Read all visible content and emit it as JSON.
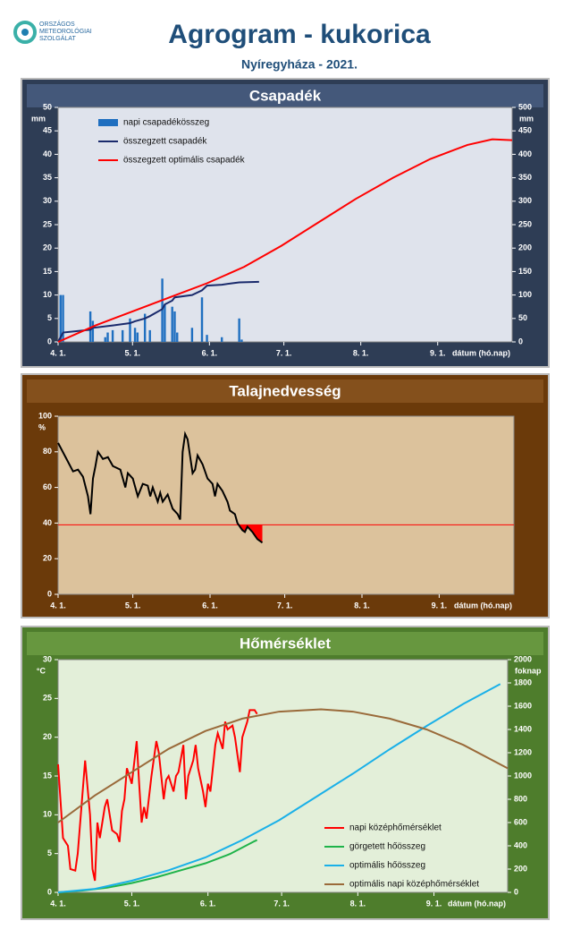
{
  "header": {
    "logo_lines": [
      "ORSZÁGOS",
      "METEOROLÓGIAI",
      "SZOLGÁLAT"
    ],
    "title": "Agrogram - kukorica",
    "subtitle": "Nyíregyháza - 2021."
  },
  "chart_data": [
    {
      "type": "combo",
      "title": "Csapadék",
      "y_unit": "mm",
      "y2_unit": "mm",
      "x_label": "dátum (hó.nap)",
      "legend": "upper left",
      "xlim": [
        0,
        183
      ],
      "xticks": [
        {
          "value": 0,
          "label": "4. 1."
        },
        {
          "value": 30,
          "label": "5. 1."
        },
        {
          "value": 61,
          "label": "6. 1."
        },
        {
          "value": 91,
          "label": "7. 1."
        },
        {
          "value": 122,
          "label": "8. 1."
        },
        {
          "value": 153,
          "label": "9. 1."
        }
      ],
      "ylim": [
        0,
        50
      ],
      "yticks": [
        0,
        5,
        10,
        15,
        20,
        25,
        30,
        35,
        40,
        45,
        50
      ],
      "y2lim": [
        0,
        500
      ],
      "y2ticks": [
        0,
        50,
        100,
        150,
        200,
        250,
        300,
        350,
        400,
        450,
        500
      ],
      "series": [
        {
          "name": "napi csapadékösszeg",
          "kind": "bar",
          "color": "#1f6fc0",
          "x": [
            1,
            2,
            13,
            14,
            19,
            20,
            22,
            26,
            29,
            31,
            32,
            35,
            37,
            42,
            43,
            46,
            47,
            48,
            54,
            58,
            60,
            66,
            73,
            74
          ],
          "values": [
            10,
            10,
            6.5,
            4.5,
            1,
            2,
            2.5,
            2.5,
            5,
            3,
            2,
            6,
            2.5,
            13.5,
            8,
            7.5,
            6.5,
            2,
            3,
            9.5,
            1.5,
            1,
            5,
            0.5
          ]
        },
        {
          "name": "összegzett csapadék",
          "kind": "line",
          "color": "#1a2a6c",
          "axis": "y2",
          "x": [
            0,
            1,
            2,
            13,
            14,
            22,
            29,
            31,
            35,
            37,
            42,
            43,
            46,
            47,
            54,
            58,
            60,
            66,
            73,
            81
          ],
          "values": [
            0,
            10,
            20,
            26,
            30,
            35,
            40,
            44,
            50,
            55,
            70,
            80,
            88,
            95,
            100,
            110,
            120,
            122,
            127,
            128
          ]
        },
        {
          "name": "összegzett optimális  csapadék",
          "kind": "line",
          "color": "#ff0000",
          "axis": "y2",
          "x": [
            0,
            15,
            30,
            45,
            60,
            75,
            90,
            105,
            120,
            135,
            150,
            165,
            175,
            183
          ],
          "values": [
            0,
            35,
            65,
            95,
            125,
            160,
            205,
            255,
            305,
            350,
            390,
            420,
            432,
            430
          ]
        }
      ]
    },
    {
      "type": "line",
      "title": "Talajnedvesség",
      "y_unit": "%",
      "x_label": "dátum (hó.nap)",
      "xlim": [
        0,
        183
      ],
      "xticks": [
        {
          "value": 0,
          "label": "4. 1."
        },
        {
          "value": 30,
          "label": "5. 1."
        },
        {
          "value": 61,
          "label": "6. 1."
        },
        {
          "value": 91,
          "label": "7. 1."
        },
        {
          "value": 122,
          "label": "8. 1."
        },
        {
          "value": 153,
          "label": "9. 1."
        }
      ],
      "ylim": [
        0,
        100
      ],
      "yticks": [
        0,
        20,
        40,
        60,
        80,
        100
      ],
      "reference_line": 39,
      "reference_color": "#ff0000",
      "series": [
        {
          "color": "#000000",
          "x": [
            0,
            3,
            6,
            8,
            10,
            12,
            13,
            14,
            15,
            16,
            18,
            20,
            22,
            25,
            27,
            28,
            30,
            32,
            34,
            36,
            37,
            38,
            40,
            41,
            42,
            44,
            46,
            48,
            49,
            50,
            51,
            52,
            54,
            55,
            56,
            58,
            60,
            62,
            63,
            64,
            66,
            68,
            69,
            71,
            72,
            74,
            75,
            76,
            78,
            80,
            82
          ],
          "values": [
            85,
            77,
            69,
            70,
            66,
            55,
            45,
            65,
            72,
            80,
            76,
            77,
            72,
            70,
            60,
            68,
            65,
            55,
            62,
            61,
            55,
            60,
            52,
            57,
            52,
            56,
            48,
            45,
            42,
            80,
            90,
            87,
            68,
            70,
            78,
            73,
            65,
            62,
            55,
            62,
            58,
            52,
            47,
            45,
            40,
            36,
            35,
            38,
            35,
            31,
            29
          ]
        }
      ]
    },
    {
      "type": "line",
      "title": "Hőmérséklet",
      "y_unit": "°C",
      "y2_unit": "foknap",
      "x_label": "dátum (hó.nap)",
      "legend": "lower right",
      "xlim": [
        0,
        183
      ],
      "xticks": [
        {
          "value": 0,
          "label": "4. 1."
        },
        {
          "value": 30,
          "label": "5. 1."
        },
        {
          "value": 61,
          "label": "6. 1."
        },
        {
          "value": 91,
          "label": "7. 1."
        },
        {
          "value": 122,
          "label": "8. 1."
        },
        {
          "value": 153,
          "label": "9. 1."
        }
      ],
      "ylim": [
        0,
        30
      ],
      "yticks": [
        0,
        5,
        10,
        15,
        20,
        25,
        30
      ],
      "y2lim": [
        0,
        2000
      ],
      "y2ticks": [
        0,
        200,
        400,
        600,
        800,
        1000,
        1200,
        1400,
        1600,
        1800,
        2000
      ],
      "series": [
        {
          "name": "napi középhőmérséklet",
          "color": "#ff0000",
          "x": [
            0,
            2,
            4,
            5,
            7,
            8,
            11,
            13,
            14,
            15,
            16,
            17,
            19,
            20,
            22,
            24,
            25,
            26,
            27,
            28,
            30,
            32,
            33,
            34,
            35,
            36,
            38,
            40,
            41,
            43,
            44,
            45,
            47,
            48,
            49,
            51,
            52,
            53,
            55,
            56,
            57,
            59,
            60,
            61,
            62,
            64,
            65,
            67,
            68,
            69,
            71,
            72,
            74,
            75,
            77,
            78,
            80,
            81
          ],
          "values": [
            16.5,
            7,
            6,
            3,
            2.8,
            5,
            17,
            10,
            3,
            1.5,
            9,
            7,
            11,
            12,
            8,
            7.5,
            6.5,
            10.5,
            12,
            16,
            14,
            19.5,
            14,
            9,
            11,
            9.5,
            15,
            19.5,
            18,
            12,
            14.5,
            15,
            13,
            15,
            15.5,
            19,
            12,
            15,
            17,
            19,
            16,
            13,
            11,
            14,
            13,
            19,
            20.5,
            18.5,
            22,
            21,
            21.5,
            20,
            15.5,
            20,
            22,
            23.5,
            23.5,
            23
          ]
        },
        {
          "name": "görgetett hőösszeg",
          "color": "#1fb34a",
          "axis": "y2",
          "x": [
            0,
            10,
            20,
            30,
            40,
            50,
            60,
            70,
            80,
            81
          ],
          "values": [
            0,
            15,
            40,
            80,
            130,
            190,
            250,
            330,
            440,
            450
          ]
        },
        {
          "name": "optimális hőösszeg",
          "color": "#1ab0e8",
          "axis": "y2",
          "x": [
            0,
            15,
            30,
            45,
            60,
            75,
            90,
            105,
            120,
            135,
            150,
            165,
            180
          ],
          "values": [
            0,
            30,
            100,
            190,
            300,
            450,
            620,
            820,
            1020,
            1230,
            1430,
            1620,
            1790
          ]
        },
        {
          "name": "optimális napi középhőmérséklet",
          "color": "#9a6a3a",
          "x": [
            0,
            15,
            30,
            45,
            60,
            75,
            90,
            107,
            120,
            135,
            150,
            165,
            183
          ],
          "values": [
            9,
            12.5,
            15.5,
            18.5,
            20.8,
            22.4,
            23.3,
            23.6,
            23.3,
            22.4,
            21,
            19,
            16
          ]
        }
      ]
    }
  ]
}
